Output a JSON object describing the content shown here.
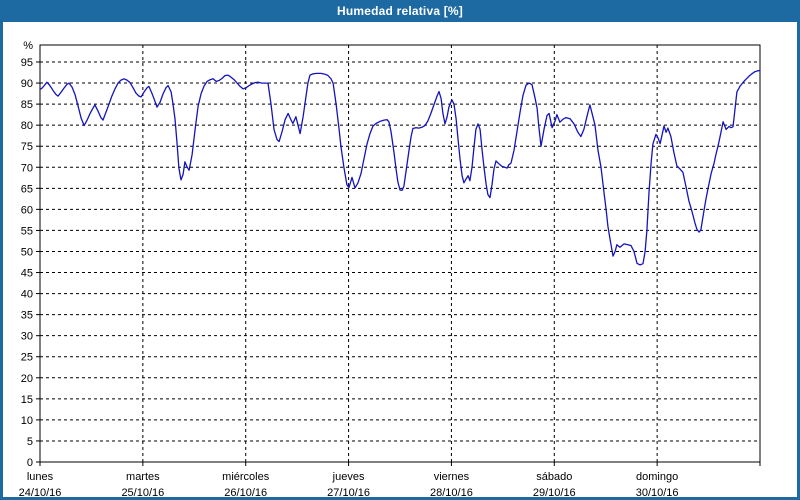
{
  "chart_data": {
    "type": "line",
    "title": "Humedad relativa [%]",
    "background": "#ffffff",
    "frame_color": "#1d6aa3",
    "plot_border_color": "#000000",
    "grid": {
      "color": "#000000",
      "dash": "3 3"
    },
    "y_axis": {
      "unit": "%",
      "min": 0,
      "max": 99,
      "tick_step": 5,
      "ticks": [
        0,
        5,
        10,
        15,
        20,
        25,
        30,
        35,
        40,
        45,
        50,
        55,
        60,
        65,
        70,
        75,
        80,
        85,
        90,
        95
      ]
    },
    "x_axis": {
      "total_hours": 168,
      "days": [
        {
          "name": "lunes",
          "date": "24/10/16"
        },
        {
          "name": "martes",
          "date": "25/10/16"
        },
        {
          "name": "miércoles",
          "date": "26/10/16"
        },
        {
          "name": "jueves",
          "date": "27/10/16"
        },
        {
          "name": "viernes",
          "date": "28/10/16"
        },
        {
          "name": "sábado",
          "date": "29/10/16"
        },
        {
          "name": "domingo",
          "date": "30/10/16"
        }
      ]
    },
    "series": [
      {
        "name": "Humedad relativa",
        "color": "#1414be",
        "points": [
          [
            0,
            88.5
          ],
          [
            0.5,
            88.8
          ],
          [
            0.9,
            89.3
          ],
          [
            1.6,
            90.2
          ],
          [
            2.3,
            89.4
          ],
          [
            3,
            88.3
          ],
          [
            3.7,
            87.3
          ],
          [
            4.2,
            86.9
          ],
          [
            4.9,
            87.8
          ],
          [
            5.6,
            88.8
          ],
          [
            6.3,
            89.7
          ],
          [
            6.8,
            90
          ],
          [
            7.5,
            89
          ],
          [
            8.2,
            87.2
          ],
          [
            8.9,
            84.5
          ],
          [
            9.6,
            81.7
          ],
          [
            10.3,
            79.9
          ],
          [
            11,
            81.2
          ],
          [
            11.7,
            82.8
          ],
          [
            12.4,
            84.1
          ],
          [
            12.8,
            84.8
          ],
          [
            13.5,
            83.4
          ],
          [
            14.2,
            81.8
          ],
          [
            14.7,
            81.2
          ],
          [
            15.4,
            83.1
          ],
          [
            16.1,
            85
          ],
          [
            16.8,
            87
          ],
          [
            17.5,
            88.6
          ],
          [
            18.2,
            90
          ],
          [
            18.9,
            90.7
          ],
          [
            19.6,
            91
          ],
          [
            20.3,
            90.7
          ],
          [
            21,
            90.1
          ],
          [
            21.7,
            88.9
          ],
          [
            22.4,
            87.6
          ],
          [
            23.1,
            86.9
          ],
          [
            23.6,
            86.7
          ],
          [
            24.3,
            87.9
          ],
          [
            25,
            88.9
          ],
          [
            25.4,
            89.2
          ],
          [
            26.1,
            87.6
          ],
          [
            26.8,
            85.7
          ],
          [
            27.3,
            84.3
          ],
          [
            28,
            85.4
          ],
          [
            28.7,
            87.4
          ],
          [
            29.4,
            88.9
          ],
          [
            29.9,
            89.4
          ],
          [
            30.6,
            87.9
          ],
          [
            31,
            85.2
          ],
          [
            31.5,
            81.5
          ],
          [
            32,
            75.5
          ],
          [
            32.4,
            69.8
          ],
          [
            32.9,
            67
          ],
          [
            33.4,
            68.3
          ],
          [
            33.8,
            71.3
          ],
          [
            34.3,
            70.1
          ],
          [
            34.8,
            69.3
          ],
          [
            35.5,
            73
          ],
          [
            36.2,
            79
          ],
          [
            36.9,
            84.5
          ],
          [
            37.6,
            87.5
          ],
          [
            38.3,
            89.3
          ],
          [
            39,
            90.4
          ],
          [
            39.7,
            90.8
          ],
          [
            40.4,
            91
          ],
          [
            41.1,
            90.4
          ],
          [
            41.8,
            90.6
          ],
          [
            42.5,
            91.1
          ],
          [
            43.2,
            91.8
          ],
          [
            43.9,
            91.9
          ],
          [
            44.6,
            91.4
          ],
          [
            45.3,
            90.8
          ],
          [
            46,
            90
          ],
          [
            46.7,
            89.2
          ],
          [
            47.4,
            88.6
          ],
          [
            48.1,
            88.9
          ],
          [
            48.8,
            89.4
          ],
          [
            49.5,
            89.8
          ],
          [
            50.2,
            90.1
          ],
          [
            50.9,
            90.2
          ],
          [
            51.8,
            90
          ],
          [
            52.5,
            90
          ],
          [
            53.2,
            90
          ],
          [
            53.9,
            85
          ],
          [
            54.6,
            79
          ],
          [
            55.3,
            76.6
          ],
          [
            55.8,
            76.1
          ],
          [
            56.5,
            78.5
          ],
          [
            57.2,
            81.3
          ],
          [
            57.9,
            82.8
          ],
          [
            58.6,
            81.2
          ],
          [
            59,
            80.4
          ],
          [
            59.7,
            82
          ],
          [
            60.2,
            80
          ],
          [
            60.7,
            78
          ],
          [
            61.4,
            82
          ],
          [
            62.1,
            87
          ],
          [
            62.5,
            90
          ],
          [
            63,
            91.9
          ],
          [
            63.7,
            92.2
          ],
          [
            64.6,
            92.3
          ],
          [
            65.6,
            92.3
          ],
          [
            66.5,
            92.1
          ],
          [
            67.2,
            91.8
          ],
          [
            67.9,
            91
          ],
          [
            68.4,
            90
          ],
          [
            69.1,
            85
          ],
          [
            69.8,
            79
          ],
          [
            70.2,
            75
          ],
          [
            70.9,
            70
          ],
          [
            71.6,
            65.8
          ],
          [
            72.1,
            65.2
          ],
          [
            72.8,
            67.6
          ],
          [
            73.5,
            65.1
          ],
          [
            74.2,
            66.3
          ],
          [
            74.9,
            68.5
          ],
          [
            75.6,
            72
          ],
          [
            76.3,
            75.5
          ],
          [
            77,
            78
          ],
          [
            77.7,
            79.8
          ],
          [
            78.4,
            80.4
          ],
          [
            79.3,
            80.9
          ],
          [
            80.3,
            81.2
          ],
          [
            81,
            81.3
          ],
          [
            81.4,
            80.8
          ],
          [
            81.9,
            78.5
          ],
          [
            82.6,
            73.5
          ],
          [
            83.1,
            69.5
          ],
          [
            83.5,
            66.5
          ],
          [
            84,
            64.6
          ],
          [
            84.5,
            64.5
          ],
          [
            84.9,
            65.5
          ],
          [
            85.4,
            69
          ],
          [
            86.1,
            74
          ],
          [
            86.6,
            77.3
          ],
          [
            87,
            79.2
          ],
          [
            87.7,
            79.4
          ],
          [
            88.4,
            79.3
          ],
          [
            89.1,
            79.5
          ],
          [
            89.8,
            79.9
          ],
          [
            90.5,
            81
          ],
          [
            91.2,
            82.8
          ],
          [
            91.9,
            84.8
          ],
          [
            92.6,
            86.8
          ],
          [
            93.1,
            88
          ],
          [
            93.6,
            86.3
          ],
          [
            94,
            82.8
          ],
          [
            94.5,
            80.3
          ],
          [
            95,
            82
          ],
          [
            95.4,
            84.3
          ],
          [
            96.1,
            86
          ],
          [
            96.6,
            85
          ],
          [
            97.1,
            81.5
          ],
          [
            97.5,
            77
          ],
          [
            98,
            72
          ],
          [
            98.5,
            68
          ],
          [
            98.9,
            66.3
          ],
          [
            99.4,
            67.2
          ],
          [
            99.9,
            68
          ],
          [
            100.3,
            66.8
          ],
          [
            100.8,
            70
          ],
          [
            101.3,
            75
          ],
          [
            101.7,
            79
          ],
          [
            102.2,
            80.3
          ],
          [
            102.7,
            79
          ],
          [
            103.1,
            74.5
          ],
          [
            103.6,
            70
          ],
          [
            104.1,
            66
          ],
          [
            104.5,
            63.5
          ],
          [
            105,
            62.8
          ],
          [
            105.5,
            66
          ],
          [
            105.9,
            69.5
          ],
          [
            106.4,
            71.5
          ],
          [
            107.1,
            70.8
          ],
          [
            107.8,
            70.2
          ],
          [
            108.5,
            70
          ],
          [
            109,
            69.8
          ],
          [
            109.4,
            70.6
          ],
          [
            109.9,
            71
          ],
          [
            110.6,
            74
          ],
          [
            111.3,
            78.5
          ],
          [
            112,
            83
          ],
          [
            112.7,
            87.1
          ],
          [
            113.4,
            89.5
          ],
          [
            114.1,
            90
          ],
          [
            114.8,
            89.6
          ],
          [
            115.5,
            86.5
          ],
          [
            116,
            84
          ],
          [
            116.4,
            79.5
          ],
          [
            116.9,
            75
          ],
          [
            117.6,
            79
          ],
          [
            118.3,
            82.3
          ],
          [
            118.8,
            82.8
          ],
          [
            119.5,
            79.4
          ],
          [
            120.2,
            81
          ],
          [
            120.6,
            82.5
          ],
          [
            121.3,
            80.7
          ],
          [
            122,
            81.4
          ],
          [
            122.7,
            81.8
          ],
          [
            123.7,
            81.5
          ],
          [
            124.6,
            80.3
          ],
          [
            125.5,
            78.3
          ],
          [
            126.2,
            77.3
          ],
          [
            126.9,
            79
          ],
          [
            127.6,
            82
          ],
          [
            128.3,
            84.8
          ],
          [
            129,
            82
          ],
          [
            129.5,
            80
          ],
          [
            130.2,
            74
          ],
          [
            130.9,
            70
          ],
          [
            131.6,
            64
          ],
          [
            132.1,
            60
          ],
          [
            132.5,
            56
          ],
          [
            133,
            53
          ],
          [
            133.7,
            48.9
          ],
          [
            134.2,
            50
          ],
          [
            134.6,
            51.6
          ],
          [
            135.3,
            51
          ],
          [
            136.3,
            51.8
          ],
          [
            137.2,
            51.6
          ],
          [
            137.9,
            51.4
          ],
          [
            138.6,
            50
          ],
          [
            139.3,
            47.2
          ],
          [
            140,
            46.8
          ],
          [
            140.7,
            47.1
          ],
          [
            141.2,
            50
          ],
          [
            141.6,
            55
          ],
          [
            142.1,
            64
          ],
          [
            142.6,
            71
          ],
          [
            143,
            75.5
          ],
          [
            143.7,
            77.8
          ],
          [
            144.2,
            77
          ],
          [
            144.7,
            75.6
          ],
          [
            145.1,
            77.5
          ],
          [
            145.6,
            79.8
          ],
          [
            146.1,
            78.3
          ],
          [
            146.5,
            79.3
          ],
          [
            147.2,
            77.3
          ],
          [
            147.9,
            73.5
          ],
          [
            148.6,
            70.3
          ],
          [
            149.3,
            69.6
          ],
          [
            150,
            68.8
          ],
          [
            150.7,
            65.5
          ],
          [
            151.4,
            62
          ],
          [
            152.1,
            59.6
          ],
          [
            152.8,
            56.8
          ],
          [
            153.3,
            55.2
          ],
          [
            153.8,
            54.6
          ],
          [
            154.2,
            55.2
          ],
          [
            154.9,
            59.6
          ],
          [
            155.4,
            62.5
          ],
          [
            155.9,
            65
          ],
          [
            156.6,
            68.5
          ],
          [
            157.3,
            71
          ],
          [
            157.7,
            73
          ],
          [
            158.2,
            75
          ],
          [
            158.7,
            77.3
          ],
          [
            159.4,
            80.8
          ],
          [
            160.1,
            79
          ],
          [
            160.8,
            79.7
          ],
          [
            161.2,
            79.4
          ],
          [
            161.7,
            79.6
          ],
          [
            162.2,
            84
          ],
          [
            162.6,
            87.9
          ],
          [
            163.3,
            89.2
          ],
          [
            164,
            90.1
          ],
          [
            164.7,
            90.9
          ],
          [
            165.4,
            91.6
          ],
          [
            166.1,
            92.2
          ],
          [
            166.8,
            92.7
          ],
          [
            167.5,
            92.9
          ],
          [
            168,
            93
          ]
        ]
      }
    ]
  }
}
